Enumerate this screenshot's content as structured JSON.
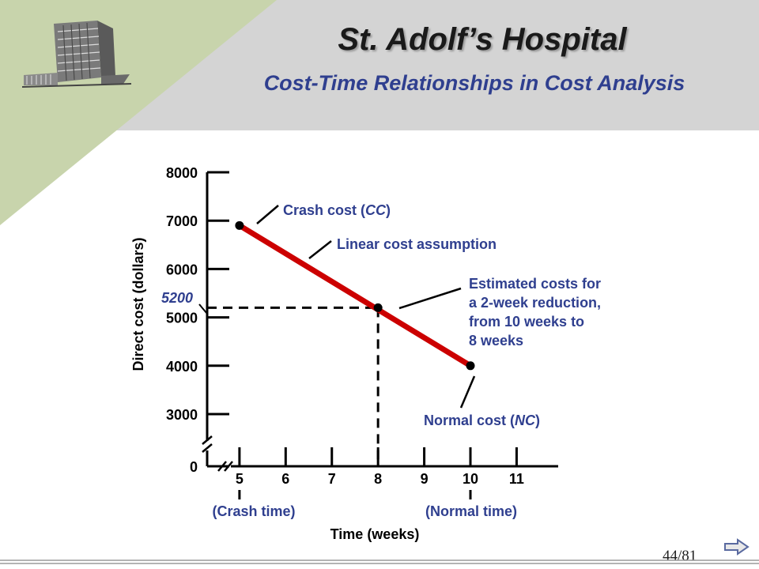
{
  "header": {
    "title": "St. Adolf’s Hospital",
    "subtitle": "Cost-Time Relationships in Cost Analysis",
    "icon": "hospital-building-icon"
  },
  "footer": {
    "page": "44/81",
    "next_icon": "next-arrow-icon"
  },
  "colors": {
    "header_band": "#d4d4d4",
    "stripe": "#c8d4ac",
    "cost_line": "#cc0000",
    "annotation_text": "#2f3f8f",
    "axis": "#000000"
  },
  "chart_data": {
    "type": "line",
    "xlabel": "Time (weeks)",
    "ylabel": "Direct cost (dollars)",
    "x_ticks": [
      "5",
      "6",
      "7",
      "8",
      "9",
      "10",
      "11"
    ],
    "y_ticks": [
      "0",
      "3000",
      "4000",
      "5000",
      "6000",
      "7000",
      "8000"
    ],
    "axis_break": true,
    "xlim": [
      4.3,
      11.9
    ],
    "ylim": [
      3000,
      8000
    ],
    "series": [
      {
        "x": [
          5,
          10
        ],
        "y": [
          6900,
          4000
        ]
      }
    ],
    "points": [
      {
        "x": 5,
        "y": 6900
      },
      {
        "x": 8,
        "y": 5200
      },
      {
        "x": 10,
        "y": 4000
      }
    ],
    "highlight": {
      "x": 8,
      "y": 5200,
      "label": "5200"
    },
    "annotations": {
      "crash_cost": "Crash cost (CC)",
      "linear": "Linear cost assumption",
      "estimated": [
        "Estimated costs for",
        "a 2-week reduction,",
        "from 10 weeks to",
        "8 weeks"
      ],
      "normal_cost": "Normal cost (NC)",
      "crash_time": "(Crash time)",
      "normal_time": "(Normal time)"
    }
  }
}
